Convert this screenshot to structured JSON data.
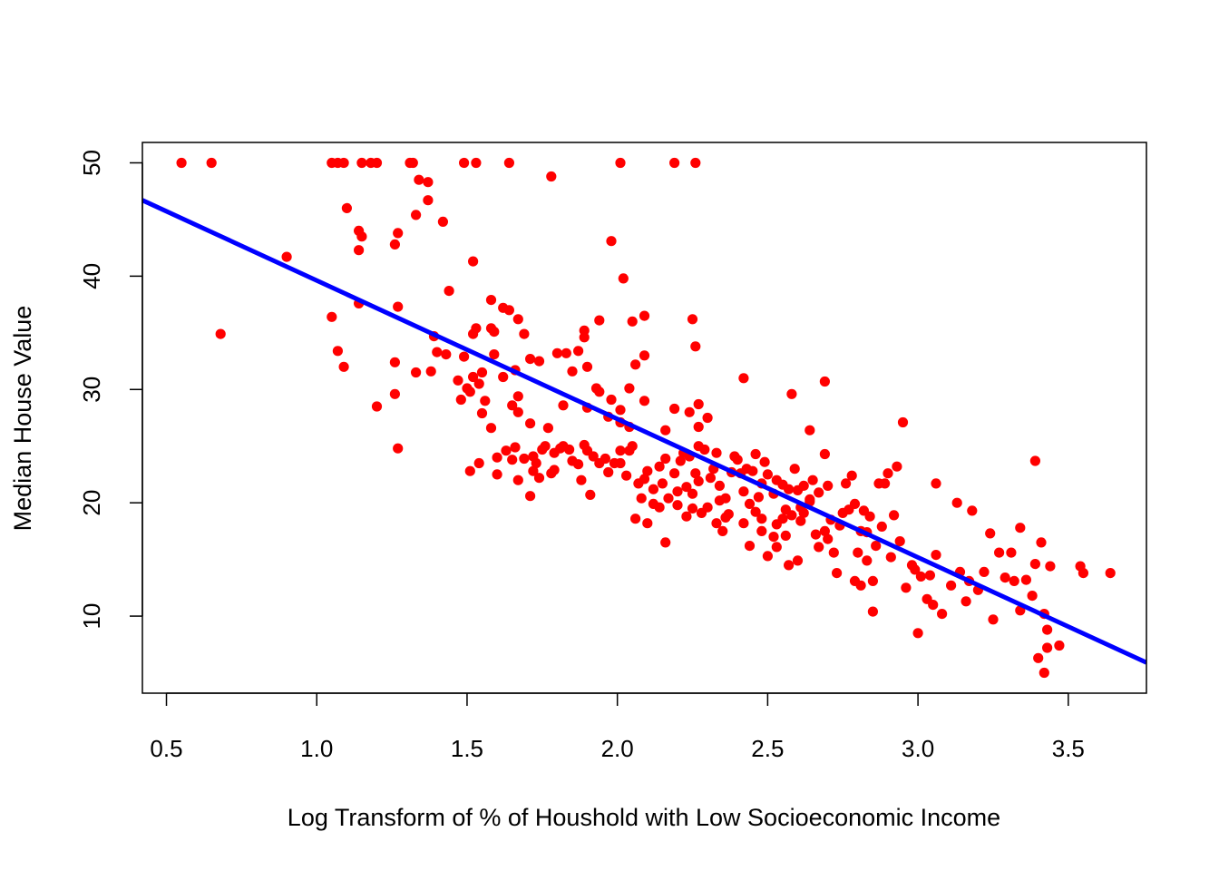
{
  "chart_data": {
    "type": "scatter",
    "title": "",
    "xlabel": "Log Transform of % of Houshold with Low Socioeconomic Income",
    "ylabel": "Median House Value",
    "xlim": [
      0.42,
      3.76
    ],
    "ylim": [
      3.2,
      51.8
    ],
    "x_ticks": [
      0.5,
      1.0,
      1.5,
      2.0,
      2.5,
      3.0,
      3.5
    ],
    "x_tick_labels": [
      "0.5",
      "1.0",
      "1.5",
      "2.0",
      "2.5",
      "3.0",
      "3.5"
    ],
    "y_ticks": [
      10,
      20,
      30,
      40,
      50
    ],
    "y_tick_labels": [
      "10",
      "20",
      "30",
      "40",
      "50"
    ],
    "grid": false,
    "legend": "none",
    "colors": {
      "points": "#ff0000",
      "fit_line": "#0000ff",
      "axes": "#000000"
    },
    "series": [
      {
        "kind": "points",
        "points": [
          [
            0.55,
            50.0
          ],
          [
            0.65,
            50.0
          ],
          [
            0.68,
            34.9
          ],
          [
            0.9,
            41.7
          ],
          [
            1.05,
            50.0
          ],
          [
            1.07,
            50.0
          ],
          [
            1.09,
            50.0
          ],
          [
            1.15,
            50.0
          ],
          [
            1.18,
            50.0
          ],
          [
            1.2,
            50.0
          ],
          [
            1.31,
            50.0
          ],
          [
            1.32,
            50.0
          ],
          [
            1.49,
            50.0
          ],
          [
            1.53,
            50.0
          ],
          [
            1.64,
            50.0
          ],
          [
            2.01,
            50.0
          ],
          [
            2.19,
            50.0
          ],
          [
            2.26,
            50.0
          ],
          [
            1.78,
            48.8
          ],
          [
            1.34,
            48.5
          ],
          [
            1.37,
            48.3
          ],
          [
            1.37,
            46.7
          ],
          [
            1.1,
            46.0
          ],
          [
            1.33,
            45.4
          ],
          [
            1.42,
            44.8
          ],
          [
            1.14,
            44.0
          ],
          [
            1.27,
            43.8
          ],
          [
            1.15,
            43.5
          ],
          [
            1.26,
            42.8
          ],
          [
            1.14,
            42.3
          ],
          [
            1.98,
            43.1
          ],
          [
            1.52,
            41.3
          ],
          [
            2.02,
            39.8
          ],
          [
            1.44,
            38.7
          ],
          [
            1.58,
            37.9
          ],
          [
            1.14,
            37.6
          ],
          [
            1.62,
            37.2
          ],
          [
            1.64,
            37.0
          ],
          [
            1.27,
            37.3
          ],
          [
            1.05,
            36.4
          ],
          [
            1.67,
            36.2
          ],
          [
            2.09,
            36.5
          ],
          [
            2.05,
            36.0
          ],
          [
            1.94,
            36.1
          ],
          [
            2.25,
            36.2
          ],
          [
            1.53,
            35.4
          ],
          [
            1.58,
            35.4
          ],
          [
            1.59,
            35.1
          ],
          [
            1.52,
            34.9
          ],
          [
            1.89,
            35.2
          ],
          [
            1.89,
            34.6
          ],
          [
            1.69,
            34.9
          ],
          [
            1.39,
            34.7
          ],
          [
            2.26,
            33.8
          ],
          [
            1.07,
            33.4
          ],
          [
            1.4,
            33.3
          ],
          [
            1.43,
            33.1
          ],
          [
            1.59,
            33.1
          ],
          [
            1.8,
            33.2
          ],
          [
            1.83,
            33.2
          ],
          [
            1.87,
            33.4
          ],
          [
            2.09,
            33.0
          ],
          [
            1.49,
            32.9
          ],
          [
            1.71,
            32.7
          ],
          [
            1.74,
            32.5
          ],
          [
            1.09,
            32.0
          ],
          [
            1.26,
            32.4
          ],
          [
            1.9,
            32.0
          ],
          [
            2.06,
            32.2
          ],
          [
            1.85,
            31.6
          ],
          [
            1.66,
            31.7
          ],
          [
            1.52,
            31.1
          ],
          [
            1.55,
            31.5
          ],
          [
            1.33,
            31.5
          ],
          [
            1.38,
            31.6
          ],
          [
            2.42,
            31.0
          ],
          [
            2.69,
            30.7
          ],
          [
            1.47,
            30.8
          ],
          [
            1.62,
            31.1
          ],
          [
            1.54,
            30.5
          ],
          [
            1.5,
            30.1
          ],
          [
            1.51,
            29.8
          ],
          [
            1.26,
            29.6
          ],
          [
            1.56,
            29.0
          ],
          [
            1.48,
            29.1
          ],
          [
            1.67,
            29.4
          ],
          [
            1.93,
            30.1
          ],
          [
            1.94,
            29.8
          ],
          [
            2.04,
            30.1
          ],
          [
            1.98,
            29.1
          ],
          [
            2.09,
            29.0
          ],
          [
            2.58,
            29.6
          ],
          [
            1.2,
            28.5
          ],
          [
            1.55,
            27.9
          ],
          [
            1.65,
            28.6
          ],
          [
            1.82,
            28.6
          ],
          [
            1.9,
            28.4
          ],
          [
            2.19,
            28.3
          ],
          [
            2.27,
            28.7
          ],
          [
            2.01,
            28.2
          ],
          [
            2.3,
            27.5
          ],
          [
            2.24,
            28.0
          ],
          [
            1.67,
            28.0
          ],
          [
            1.71,
            27.0
          ],
          [
            1.58,
            26.6
          ],
          [
            1.77,
            26.6
          ],
          [
            1.97,
            27.6
          ],
          [
            2.01,
            27.1
          ],
          [
            2.04,
            26.7
          ],
          [
            2.16,
            26.4
          ],
          [
            2.27,
            26.7
          ],
          [
            2.64,
            26.4
          ],
          [
            2.95,
            27.1
          ],
          [
            1.27,
            24.8
          ],
          [
            1.51,
            22.8
          ],
          [
            1.54,
            23.5
          ],
          [
            1.6,
            22.5
          ],
          [
            1.6,
            24.0
          ],
          [
            1.63,
            24.6
          ],
          [
            1.65,
            23.8
          ],
          [
            1.66,
            24.9
          ],
          [
            1.69,
            23.9
          ],
          [
            1.72,
            22.8
          ],
          [
            1.72,
            24.1
          ],
          [
            1.73,
            23.5
          ],
          [
            1.75,
            24.7
          ],
          [
            1.76,
            25.0
          ],
          [
            1.79,
            24.4
          ],
          [
            1.79,
            22.9
          ],
          [
            1.81,
            24.8
          ],
          [
            1.82,
            25.0
          ],
          [
            1.84,
            24.7
          ],
          [
            1.85,
            23.7
          ],
          [
            1.87,
            23.4
          ],
          [
            1.89,
            25.1
          ],
          [
            1.9,
            24.6
          ],
          [
            1.92,
            24.1
          ],
          [
            1.94,
            23.5
          ],
          [
            1.96,
            23.9
          ],
          [
            1.97,
            22.7
          ],
          [
            1.99,
            23.5
          ],
          [
            2.01,
            24.6
          ],
          [
            2.01,
            23.5
          ],
          [
            2.03,
            22.4
          ],
          [
            2.04,
            24.6
          ],
          [
            2.05,
            25.0
          ],
          [
            2.07,
            21.7
          ],
          [
            2.09,
            22.1
          ],
          [
            2.1,
            22.8
          ],
          [
            2.12,
            21.2
          ],
          [
            2.14,
            23.2
          ],
          [
            2.15,
            21.7
          ],
          [
            2.16,
            23.9
          ],
          [
            2.17,
            20.4
          ],
          [
            2.19,
            22.6
          ],
          [
            2.2,
            21.0
          ],
          [
            2.21,
            23.7
          ],
          [
            2.22,
            24.4
          ],
          [
            2.23,
            21.4
          ],
          [
            2.24,
            24.1
          ],
          [
            2.25,
            20.8
          ],
          [
            2.26,
            22.6
          ],
          [
            2.27,
            21.9
          ],
          [
            2.27,
            25.0
          ],
          [
            2.29,
            24.7
          ],
          [
            2.31,
            22.2
          ],
          [
            2.32,
            23.0
          ],
          [
            2.33,
            24.4
          ],
          [
            2.34,
            21.5
          ],
          [
            2.36,
            20.4
          ],
          [
            2.38,
            22.7
          ],
          [
            2.39,
            24.1
          ],
          [
            2.4,
            23.8
          ],
          [
            2.41,
            22.6
          ],
          [
            2.42,
            21.0
          ],
          [
            2.43,
            23.0
          ],
          [
            2.45,
            22.8
          ],
          [
            2.46,
            24.3
          ],
          [
            2.47,
            20.5
          ],
          [
            2.48,
            21.7
          ],
          [
            2.49,
            23.6
          ],
          [
            2.5,
            22.5
          ],
          [
            2.52,
            20.8
          ],
          [
            2.53,
            22.0
          ],
          [
            2.55,
            21.6
          ],
          [
            2.56,
            19.4
          ],
          [
            2.57,
            21.2
          ],
          [
            2.59,
            23.0
          ],
          [
            2.6,
            21.1
          ],
          [
            2.61,
            19.6
          ],
          [
            2.62,
            21.5
          ],
          [
            2.64,
            20.3
          ],
          [
            2.65,
            22.0
          ],
          [
            2.67,
            20.9
          ],
          [
            2.69,
            24.3
          ],
          [
            2.7,
            21.5
          ],
          [
            1.71,
            20.6
          ],
          [
            1.67,
            22.0
          ],
          [
            1.74,
            22.2
          ],
          [
            1.78,
            22.6
          ],
          [
            1.88,
            22.0
          ],
          [
            1.91,
            20.7
          ],
          [
            2.06,
            18.6
          ],
          [
            2.08,
            20.4
          ],
          [
            2.1,
            18.2
          ],
          [
            2.14,
            19.6
          ],
          [
            2.16,
            16.5
          ],
          [
            2.2,
            19.8
          ],
          [
            2.23,
            18.8
          ],
          [
            2.25,
            19.5
          ],
          [
            2.28,
            19.1
          ],
          [
            2.3,
            19.6
          ],
          [
            2.33,
            18.2
          ],
          [
            2.35,
            17.5
          ],
          [
            2.37,
            19.0
          ],
          [
            2.42,
            18.2
          ],
          [
            2.44,
            16.2
          ],
          [
            2.46,
            19.2
          ],
          [
            2.48,
            18.6
          ],
          [
            2.5,
            15.3
          ],
          [
            2.52,
            17.0
          ],
          [
            2.53,
            16.1
          ],
          [
            2.55,
            18.6
          ],
          [
            2.57,
            14.5
          ],
          [
            2.58,
            18.9
          ],
          [
            2.6,
            14.9
          ],
          [
            2.62,
            19.1
          ],
          [
            2.64,
            20.1
          ],
          [
            2.66,
            17.2
          ],
          [
            2.67,
            16.1
          ],
          [
            2.69,
            17.5
          ],
          [
            2.7,
            16.8
          ],
          [
            2.71,
            18.5
          ],
          [
            2.72,
            15.6
          ],
          [
            2.73,
            13.8
          ],
          [
            2.74,
            18.0
          ],
          [
            2.75,
            19.1
          ],
          [
            2.76,
            21.7
          ],
          [
            2.77,
            19.4
          ],
          [
            2.78,
            22.4
          ],
          [
            2.79,
            19.9
          ],
          [
            2.8,
            15.6
          ],
          [
            2.81,
            12.7
          ],
          [
            2.82,
            19.3
          ],
          [
            2.83,
            17.4
          ],
          [
            2.84,
            18.8
          ],
          [
            2.85,
            13.1
          ],
          [
            2.86,
            16.2
          ],
          [
            2.87,
            21.7
          ],
          [
            2.88,
            17.9
          ],
          [
            2.89,
            21.7
          ],
          [
            2.9,
            22.6
          ],
          [
            2.91,
            15.2
          ],
          [
            2.92,
            18.9
          ],
          [
            2.93,
            23.2
          ],
          [
            2.94,
            16.6
          ],
          [
            2.96,
            12.5
          ],
          [
            2.99,
            14.1
          ],
          [
            3.0,
            8.5
          ],
          [
            3.01,
            13.5
          ],
          [
            3.03,
            11.5
          ],
          [
            3.04,
            13.6
          ],
          [
            3.05,
            11.0
          ],
          [
            3.06,
            15.4
          ],
          [
            3.06,
            21.7
          ],
          [
            3.08,
            10.2
          ],
          [
            3.11,
            12.7
          ],
          [
            3.13,
            20.0
          ],
          [
            3.14,
            13.9
          ],
          [
            3.16,
            11.3
          ],
          [
            3.17,
            13.1
          ],
          [
            3.18,
            19.3
          ],
          [
            3.2,
            12.3
          ],
          [
            3.22,
            13.9
          ],
          [
            3.24,
            17.3
          ],
          [
            3.25,
            9.7
          ],
          [
            3.27,
            15.6
          ],
          [
            3.29,
            13.4
          ],
          [
            3.31,
            15.6
          ],
          [
            3.32,
            13.1
          ],
          [
            3.34,
            17.8
          ],
          [
            3.34,
            10.5
          ],
          [
            3.36,
            13.2
          ],
          [
            3.38,
            11.8
          ],
          [
            3.39,
            14.6
          ],
          [
            3.39,
            23.7
          ],
          [
            3.4,
            6.3
          ],
          [
            3.41,
            16.5
          ],
          [
            3.42,
            10.2
          ],
          [
            3.42,
            5.0
          ],
          [
            3.43,
            8.8
          ],
          [
            3.43,
            7.2
          ],
          [
            3.44,
            14.4
          ],
          [
            3.47,
            7.4
          ],
          [
            3.54,
            14.4
          ],
          [
            3.55,
            13.8
          ],
          [
            3.64,
            13.8
          ],
          [
            2.85,
            10.4
          ],
          [
            2.79,
            13.1
          ],
          [
            2.98,
            14.5
          ],
          [
            2.83,
            14.9
          ],
          [
            2.81,
            17.5
          ],
          [
            2.36,
            18.7
          ],
          [
            2.12,
            19.9
          ],
          [
            2.34,
            20.2
          ],
          [
            2.53,
            18.1
          ],
          [
            2.56,
            17.1
          ],
          [
            2.48,
            17.5
          ],
          [
            2.61,
            18.4
          ],
          [
            2.44,
            19.9
          ]
        ]
      },
      {
        "kind": "fit_line",
        "x": [
          0.42,
          3.76
        ],
        "y": [
          46.7,
          5.9
        ]
      }
    ]
  }
}
